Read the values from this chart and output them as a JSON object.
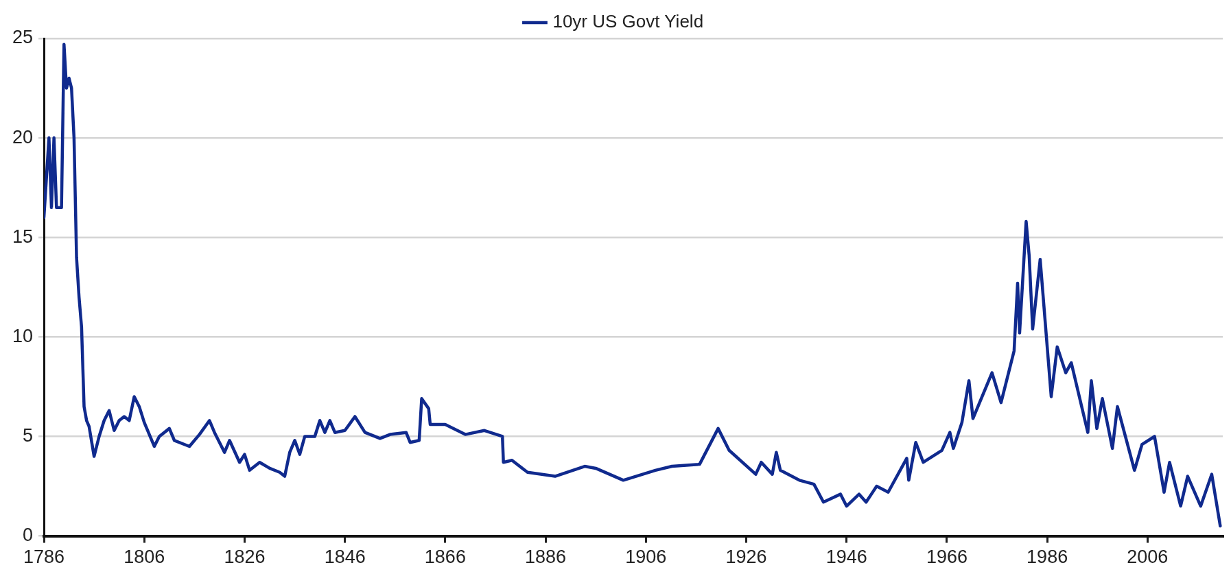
{
  "chart_data": {
    "type": "line",
    "xlim": [
      1786,
      2021
    ],
    "xticks": [
      1786,
      1806,
      1826,
      1846,
      1866,
      1886,
      1906,
      1926,
      1946,
      1966,
      1986,
      2006
    ],
    "ylim": [
      0,
      25
    ],
    "yticks": [
      0,
      5,
      10,
      15,
      20,
      25
    ],
    "grid": "y",
    "legend": "top",
    "marker": "none",
    "line_style": "solid",
    "series": [
      {
        "name": "10yr US Govt Yield",
        "color": "#102a8e",
        "x": [
          1786,
          1787,
          1787.5,
          1788,
          1788.5,
          1789.5,
          1790,
          1790.5,
          1791,
          1791.5,
          1792,
          1792.5,
          1793,
          1793.5,
          1794,
          1794.5,
          1795,
          1796,
          1797,
          1798,
          1799,
          1800,
          1801,
          1802,
          1803,
          1804,
          1805,
          1806,
          1808,
          1809,
          1811,
          1812,
          1815,
          1817,
          1819,
          1820,
          1822,
          1823,
          1825,
          1826,
          1827,
          1829,
          1831,
          1833,
          1834,
          1835,
          1836,
          1837,
          1838,
          1840,
          1841,
          1842,
          1843,
          1844,
          1846,
          1848,
          1850,
          1853,
          1855,
          1858.2,
          1859,
          1860.8,
          1861.3,
          1862.7,
          1863,
          1866,
          1870,
          1873.8,
          1877.4,
          1877.6,
          1879.3,
          1882.4,
          1887.9,
          1893.8,
          1896,
          1901.5,
          1907.9,
          1911.2,
          1916.7,
          1920.4,
          1922.6,
          1927.9,
          1929,
          1931.2,
          1932,
          1932.8,
          1936.6,
          1939.5,
          1941.4,
          1944.8,
          1946,
          1948.5,
          1949.9,
          1952,
          1954.3,
          1958,
          1958.4,
          1959.8,
          1961.3,
          1965,
          1966.6,
          1967.3,
          1969,
          1970.4,
          1971.2,
          1975,
          1976.8,
          1979.4,
          1980.1,
          1980.5,
          1981.8,
          1982.4,
          1983.1,
          1984.6,
          1985.3,
          1986.8,
          1988,
          1989.7,
          1990.8,
          1994.1,
          1994.8,
          1995.9,
          1997,
          1999,
          2000,
          2003.4,
          2004.9,
          2007.4,
          2009.3,
          2010.4,
          2012.6,
          2014,
          2016.6,
          2018.8,
          2020.5
        ],
        "values": [
          16,
          20,
          16.5,
          20,
          16.5,
          16.5,
          24.7,
          22.5,
          23,
          22.5,
          20,
          14,
          12,
          10.5,
          6.5,
          5.8,
          5.5,
          4,
          5,
          5.8,
          6.3,
          5.3,
          5.8,
          6,
          5.8,
          7,
          6.5,
          5.7,
          4.5,
          5,
          5.4,
          4.8,
          4.5,
          5.1,
          5.8,
          5.2,
          4.2,
          4.8,
          3.7,
          4.1,
          3.3,
          3.7,
          3.4,
          3.2,
          3,
          4.2,
          4.8,
          4.1,
          5,
          5,
          5.8,
          5.2,
          5.8,
          5.2,
          5.3,
          6,
          5.2,
          4.9,
          5.1,
          5.2,
          4.7,
          4.8,
          6.9,
          6.4,
          5.6,
          5.6,
          5.1,
          5.3,
          5,
          3.7,
          3.8,
          3.2,
          3,
          3.5,
          3.4,
          2.8,
          3.3,
          3.5,
          3.6,
          5.4,
          4.3,
          3.1,
          3.7,
          3.1,
          4.2,
          3.3,
          2.8,
          2.6,
          1.7,
          2.1,
          1.5,
          2.1,
          1.7,
          2.5,
          2.2,
          3.9,
          2.8,
          4.7,
          3.7,
          4.3,
          5.2,
          4.4,
          5.7,
          7.8,
          5.9,
          8.2,
          6.7,
          9.3,
          12.7,
          10.2,
          15.8,
          14.1,
          10.4,
          13.9,
          11.7,
          7,
          9.5,
          8.2,
          8.7,
          5.2,
          7.8,
          5.4,
          6.9,
          4.4,
          6.5,
          3.3,
          4.6,
          5,
          2.2,
          3.7,
          1.5,
          3,
          1.5,
          3.1,
          0.5
        ]
      }
    ]
  }
}
